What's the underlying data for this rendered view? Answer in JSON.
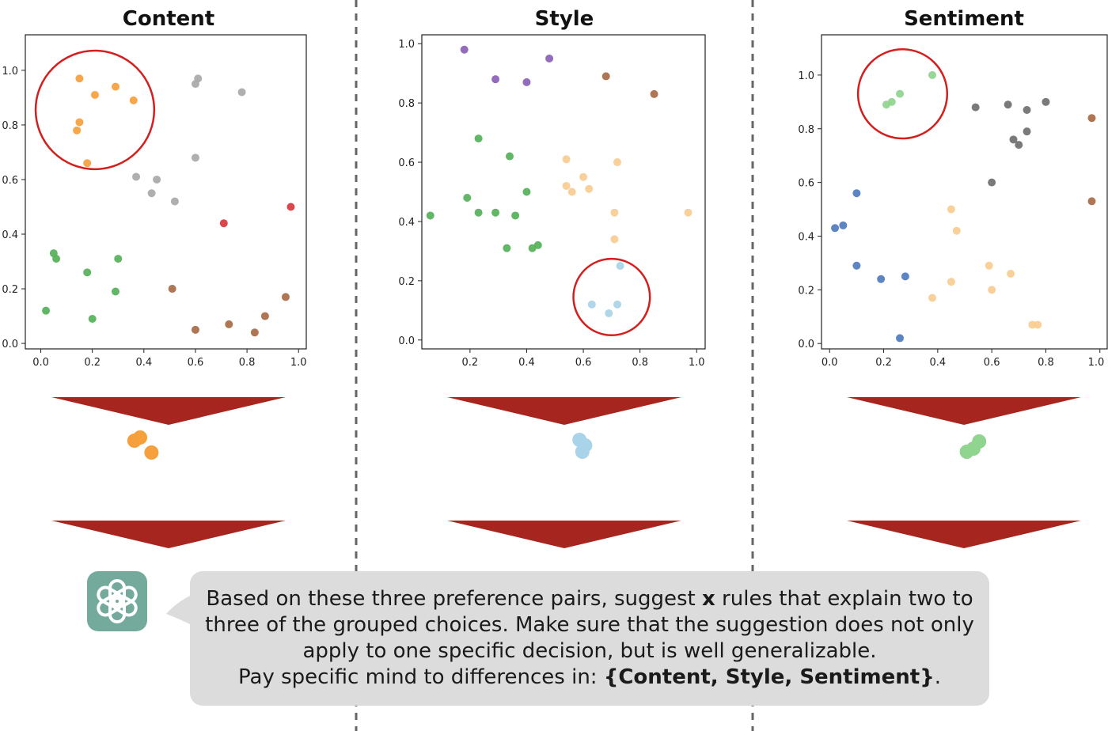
{
  "colors": {
    "orange": "#f5a03c",
    "gray": "#a8a8a8",
    "dark_gray": "#6f6f6f",
    "red": "#d9363e",
    "green": "#55b15a",
    "light_green": "#8fd48f",
    "brown": "#a86a44",
    "purple": "#8a5fb5",
    "peach": "#f8cc90",
    "light_blue": "#a9d3e8",
    "blue": "#4f7bbd",
    "circle": "#d41f1f",
    "arrow": "#a6261f",
    "logo": "#74aa9c"
  },
  "chart_data": [
    {
      "type": "scatter",
      "title": "Content",
      "xlim": [
        -0.06,
        1.03
      ],
      "ylim": [
        -0.02,
        1.13
      ],
      "xticks": [
        "0.0",
        "0.2",
        "0.4",
        "0.6",
        "0.8",
        "1.0"
      ],
      "yticks": [
        "0.0",
        "0.2",
        "0.4",
        "0.6",
        "0.8",
        "1.0"
      ],
      "grid": false,
      "highlight": {
        "cx": 0.21,
        "cy": 0.855,
        "r": 0.23
      },
      "selected": [
        {
          "color": "orange",
          "x": 0.2,
          "y": 0.95
        },
        {
          "color": "orange",
          "x": 0.14,
          "y": 0.91
        },
        {
          "color": "orange",
          "x": 0.32,
          "y": 0.76
        }
      ],
      "series": [
        {
          "color": "orange",
          "points": [
            [
              0.15,
              0.97
            ],
            [
              0.21,
              0.91
            ],
            [
              0.29,
              0.94
            ],
            [
              0.36,
              0.89
            ],
            [
              0.15,
              0.81
            ],
            [
              0.14,
              0.78
            ],
            [
              0.18,
              0.66
            ]
          ]
        },
        {
          "color": "gray",
          "points": [
            [
              0.61,
              0.97
            ],
            [
              0.6,
              0.95
            ],
            [
              0.78,
              0.92
            ],
            [
              0.6,
              0.68
            ],
            [
              0.37,
              0.61
            ],
            [
              0.45,
              0.6
            ],
            [
              0.43,
              0.55
            ],
            [
              0.52,
              0.52
            ]
          ]
        },
        {
          "color": "red",
          "points": [
            [
              0.71,
              0.44
            ],
            [
              0.97,
              0.5
            ]
          ]
        },
        {
          "color": "green",
          "points": [
            [
              0.05,
              0.33
            ],
            [
              0.06,
              0.31
            ],
            [
              0.3,
              0.31
            ],
            [
              0.18,
              0.26
            ],
            [
              0.29,
              0.19
            ],
            [
              0.02,
              0.12
            ],
            [
              0.2,
              0.09
            ]
          ]
        },
        {
          "color": "brown",
          "points": [
            [
              0.51,
              0.2
            ],
            [
              0.6,
              0.05
            ],
            [
              0.73,
              0.07
            ],
            [
              0.83,
              0.04
            ],
            [
              0.87,
              0.1
            ],
            [
              0.95,
              0.17
            ]
          ]
        }
      ]
    },
    {
      "type": "scatter",
      "title": "Style",
      "xlim": [
        0.03,
        1.03
      ],
      "ylim": [
        -0.03,
        1.03
      ],
      "xticks": [
        "0.2",
        "0.4",
        "0.6",
        "0.8",
        "1.0"
      ],
      "yticks": [
        "0.0",
        "0.2",
        "0.4",
        "0.6",
        "0.8",
        "1.0"
      ],
      "grid": false,
      "highlight": {
        "cx": 0.7,
        "cy": 0.145,
        "r": 0.135
      },
      "selected": [
        {
          "color": "light_blue",
          "x": 0.66,
          "y": 0.92
        },
        {
          "color": "light_blue",
          "x": 0.72,
          "y": 0.85
        },
        {
          "color": "light_blue",
          "x": 0.69,
          "y": 0.77
        }
      ],
      "series": [
        {
          "color": "purple",
          "points": [
            [
              0.18,
              0.98
            ],
            [
              0.29,
              0.88
            ],
            [
              0.4,
              0.87
            ],
            [
              0.48,
              0.95
            ]
          ]
        },
        {
          "color": "brown",
          "points": [
            [
              0.68,
              0.89
            ],
            [
              0.85,
              0.83
            ]
          ]
        },
        {
          "color": "green",
          "points": [
            [
              0.23,
              0.68
            ],
            [
              0.34,
              0.62
            ],
            [
              0.19,
              0.48
            ],
            [
              0.4,
              0.5
            ],
            [
              0.06,
              0.42
            ],
            [
              0.23,
              0.43
            ],
            [
              0.29,
              0.43
            ],
            [
              0.36,
              0.42
            ],
            [
              0.33,
              0.31
            ],
            [
              0.42,
              0.31
            ],
            [
              0.44,
              0.32
            ]
          ]
        },
        {
          "color": "peach",
          "points": [
            [
              0.54,
              0.61
            ],
            [
              0.72,
              0.6
            ],
            [
              0.6,
              0.55
            ],
            [
              0.54,
              0.52
            ],
            [
              0.62,
              0.51
            ],
            [
              0.56,
              0.5
            ],
            [
              0.71,
              0.43
            ],
            [
              0.97,
              0.43
            ],
            [
              0.71,
              0.34
            ]
          ]
        },
        {
          "color": "light_blue",
          "points": [
            [
              0.73,
              0.25
            ],
            [
              0.63,
              0.12
            ],
            [
              0.72,
              0.12
            ],
            [
              0.69,
              0.09
            ]
          ]
        }
      ]
    },
    {
      "type": "scatter",
      "title": "Sentiment",
      "xlim": [
        -0.03,
        1.03
      ],
      "ylim": [
        -0.02,
        1.15
      ],
      "xticks": [
        "0.0",
        "0.2",
        "0.4",
        "0.6",
        "0.8",
        "1.0"
      ],
      "yticks": [
        "0.0",
        "0.2",
        "0.4",
        "0.6",
        "0.8",
        "1.0"
      ],
      "grid": false,
      "highlight": {
        "cx": 0.27,
        "cy": 0.93,
        "r": 0.165
      },
      "selected": [
        {
          "color": "light_green",
          "x": 0.66,
          "y": 0.9
        },
        {
          "color": "light_green",
          "x": 0.6,
          "y": 0.81
        },
        {
          "color": "light_green",
          "x": 0.53,
          "y": 0.77
        }
      ],
      "series": [
        {
          "color": "light_green",
          "points": [
            [
              0.38,
              1.0
            ],
            [
              0.26,
              0.93
            ],
            [
              0.23,
              0.9
            ],
            [
              0.21,
              0.89
            ]
          ]
        },
        {
          "color": "dark_gray",
          "points": [
            [
              0.54,
              0.88
            ],
            [
              0.66,
              0.89
            ],
            [
              0.73,
              0.87
            ],
            [
              0.8,
              0.9
            ],
            [
              0.73,
              0.79
            ],
            [
              0.68,
              0.76
            ],
            [
              0.7,
              0.74
            ],
            [
              0.6,
              0.6
            ]
          ]
        },
        {
          "color": "brown",
          "points": [
            [
              0.97,
              0.84
            ],
            [
              0.97,
              0.53
            ]
          ]
        },
        {
          "color": "blue",
          "points": [
            [
              0.1,
              0.56
            ],
            [
              0.05,
              0.44
            ],
            [
              0.02,
              0.43
            ],
            [
              0.1,
              0.29
            ],
            [
              0.19,
              0.24
            ],
            [
              0.28,
              0.25
            ],
            [
              0.26,
              0.02
            ]
          ]
        },
        {
          "color": "peach",
          "points": [
            [
              0.45,
              0.5
            ],
            [
              0.47,
              0.42
            ],
            [
              0.59,
              0.29
            ],
            [
              0.67,
              0.26
            ],
            [
              0.45,
              0.23
            ],
            [
              0.38,
              0.17
            ],
            [
              0.6,
              0.2
            ],
            [
              0.75,
              0.07
            ],
            [
              0.77,
              0.07
            ]
          ]
        }
      ]
    }
  ],
  "prompt": {
    "line1_before": "Based on these three preference pairs, suggest ",
    "line1_bold": "x",
    "line1_after": " rules that explain two to",
    "line2": "three of the grouped choices. Make sure that the suggestion does not only",
    "line3": "apply to one specific decision, but is well generalizable.",
    "line4_before": "Pay specific mind to differences in: ",
    "line4_bold": "{Content, Style, Sentiment}",
    "line4_after": "."
  },
  "logo": {
    "icon": "openai-logo-icon"
  }
}
